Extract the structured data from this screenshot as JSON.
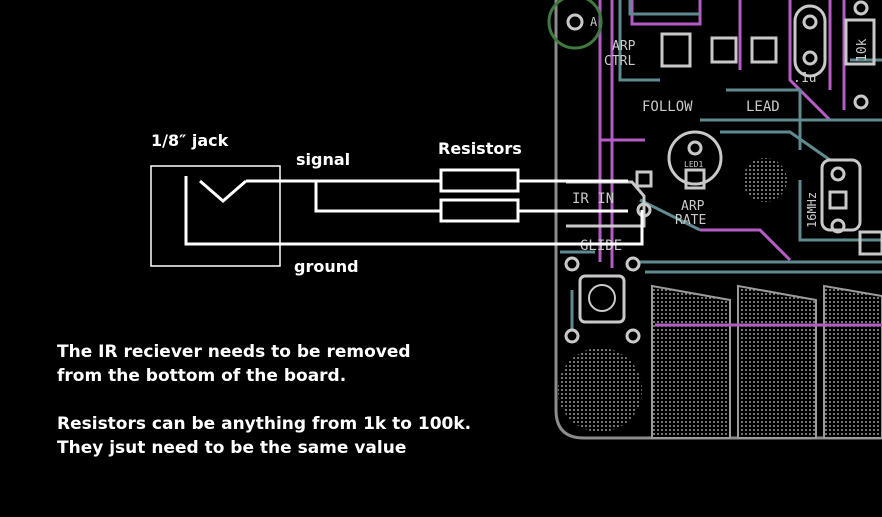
{
  "diagram": {
    "labels": {
      "jack": "1/8″ jack",
      "signal": "signal",
      "ground": "ground",
      "resistors": "Resistors"
    },
    "notes": [
      "The IR reciever needs to be removed",
      "from the bottom of the board.",
      "Resistors can be anything from 1k to 100k.",
      "They jsut need to be the same value"
    ],
    "pcb_labels": {
      "pad_a": "A",
      "arp_ctrl_1": "ARP",
      "arp_ctrl_2": "CTRL",
      "cap": ".1u",
      "resistor": "10k",
      "follow": "FOLLOW",
      "lead": "LEAD",
      "led": "LED1",
      "arp_rate_1": "ARP",
      "arp_rate_2": "RATE",
      "crystal": "16MHz",
      "ir_in": "IR IN",
      "glide": "GLIDE"
    },
    "colors": {
      "background": "#000000",
      "wire": "#ffffff",
      "pcb_outline": "#8c8c8c",
      "trace_purple": "#b55cc4",
      "trace_teal": "#5f8a8f",
      "silkscreen": "#c9c9c9",
      "ring_green": "#3f7a3f"
    }
  }
}
